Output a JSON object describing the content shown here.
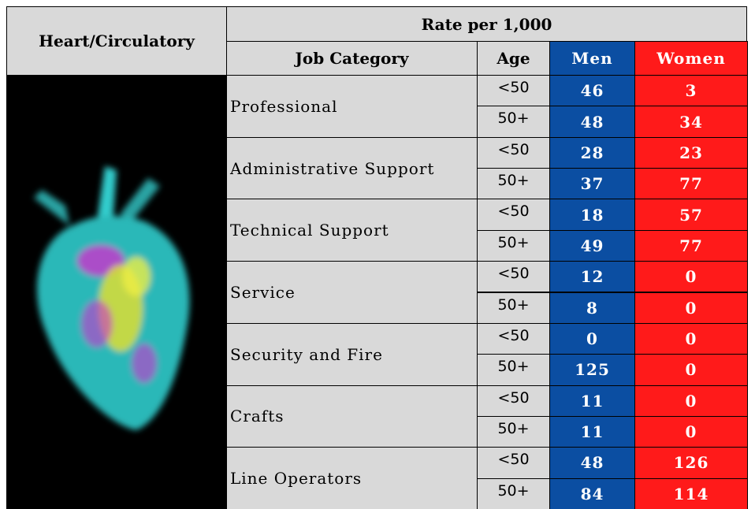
{
  "header": {
    "title": "Heart/Circulatory",
    "rate_header": "Rate per 1,000",
    "columns": [
      "Job Category",
      "Age",
      "Men",
      "Women"
    ]
  },
  "rows": [
    {
      "category": "Professional",
      "ages": [
        "<50",
        "50+"
      ],
      "men": [
        46,
        48
      ],
      "women": [
        3,
        34
      ]
    },
    {
      "category": "Administrative Support",
      "ages": [
        "<50",
        "50+"
      ],
      "men": [
        28,
        37
      ],
      "women": [
        23,
        77
      ]
    },
    {
      "category": "Technical Support",
      "ages": [
        "<50",
        "50+"
      ],
      "men": [
        18,
        49
      ],
      "women": [
        57,
        77
      ]
    },
    {
      "category": "Service",
      "ages": [
        "<50",
        "50+"
      ],
      "men": [
        12,
        8
      ],
      "women": [
        0,
        0
      ]
    },
    {
      "category": "Security and Fire",
      "ages": [
        "<50",
        "50+"
      ],
      "men": [
        0,
        125
      ],
      "women": [
        0,
        0
      ]
    },
    {
      "category": "Crafts",
      "ages": [
        "<50",
        "50+"
      ],
      "men": [
        11,
        11
      ],
      "women": [
        0,
        0
      ]
    },
    {
      "category": "Line Operators",
      "ages": [
        "<50",
        "50+"
      ],
      "men": [
        48,
        84
      ],
      "women": [
        126,
        114
      ]
    }
  ]
}
